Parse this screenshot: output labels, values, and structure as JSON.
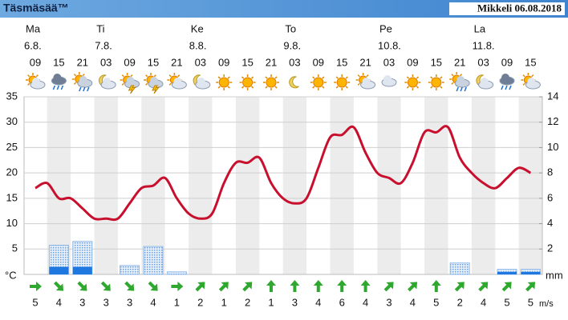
{
  "header": {
    "title": "Täsmäsää™",
    "location_date": "Mikkeli 06.08.2018"
  },
  "chart_data": {
    "type": "weather",
    "days": [
      "Ma",
      "Ti",
      "Ke",
      "To",
      "Pe",
      "La"
    ],
    "dates": [
      "6.8.",
      "7.8.",
      "8.8.",
      "9.8.",
      "10.8.",
      "11.8."
    ],
    "categories": [
      "09",
      null,
      "15",
      null,
      "21",
      null,
      "03",
      null,
      "09",
      null,
      "15",
      null,
      "21",
      null,
      "03",
      null,
      "09",
      null,
      "15",
      null,
      "21",
      null,
      "03",
      null,
      "09",
      null,
      "15",
      null,
      "21",
      null,
      "03",
      null,
      "09",
      null,
      "15",
      null,
      "21",
      null,
      "03",
      null,
      "09",
      null,
      "15"
    ],
    "symbols": [
      "partly",
      null,
      "rain",
      null,
      "partly-rain",
      null,
      "moon-cloud",
      null,
      "thunder",
      null,
      "thunder",
      null,
      "partly",
      null,
      "moon-cloud",
      null,
      "sun",
      null,
      "sun",
      null,
      "sun",
      null,
      "moon",
      null,
      "sun",
      null,
      "sun",
      null,
      "partly",
      null,
      "cloud",
      null,
      "sun",
      null,
      "sun",
      null,
      "partly-rain",
      null,
      "moon-cloud",
      null,
      "rain",
      null,
      "partly"
    ],
    "series": [
      {
        "color": "#c8102e",
        "values": [
          17,
          18,
          15,
          15,
          13,
          11,
          11,
          11,
          14,
          17,
          17.5,
          19,
          15,
          12,
          11,
          12,
          18,
          22,
          22,
          23,
          18,
          15,
          14,
          15,
          21,
          27,
          27.5,
          29,
          24,
          20,
          19,
          18,
          22,
          28,
          28,
          29,
          23,
          20,
          18,
          17,
          19,
          21,
          20
        ]
      },
      {
        "color": "#8fb8e8",
        "axis": "y2",
        "values": [
          0,
          null,
          2.3,
          null,
          2.6,
          null,
          0,
          null,
          0.7,
          null,
          2.2,
          null,
          0.2,
          null,
          0,
          null,
          0,
          null,
          0,
          null,
          0,
          null,
          0,
          null,
          0,
          null,
          0,
          null,
          0,
          null,
          0,
          null,
          0,
          null,
          0,
          null,
          0.9,
          null,
          0,
          null,
          0.4,
          null,
          0.4
        ]
      },
      {
        "color": "#1e78e0",
        "axis": "y2",
        "values": [
          0,
          null,
          0.6,
          null,
          0.6,
          null,
          0,
          null,
          0,
          null,
          0,
          null,
          0,
          null,
          0,
          null,
          0,
          null,
          0,
          null,
          0,
          null,
          0,
          null,
          0,
          null,
          0,
          null,
          0,
          null,
          0,
          null,
          0,
          null,
          0,
          null,
          0,
          null,
          0,
          null,
          0.2,
          null,
          0.2
        ]
      }
    ],
    "ylim": [
      0,
      35
    ],
    "yticks": [
      5,
      10,
      15,
      20,
      25,
      30,
      35
    ],
    "y_label": "°C",
    "y_color": "#d01010",
    "y2lim": [
      0,
      14
    ],
    "y2ticks": [
      2,
      4,
      6,
      8,
      10,
      12,
      14
    ],
    "y2_label": "mm",
    "y2_color": "#1060c0",
    "grid": true,
    "wind_speed": [
      5,
      null,
      4,
      null,
      3,
      null,
      3,
      null,
      3,
      null,
      4,
      null,
      1,
      null,
      2,
      null,
      1,
      null,
      2,
      null,
      1,
      null,
      3,
      null,
      4,
      null,
      6,
      null,
      4,
      null,
      3,
      null,
      4,
      null,
      5,
      null,
      2,
      null,
      4,
      null,
      5,
      null,
      5
    ],
    "wind_arrow_deg": [
      0,
      null,
      45,
      null,
      45,
      null,
      45,
      null,
      45,
      null,
      45,
      null,
      0,
      null,
      -45,
      null,
      -45,
      null,
      -45,
      null,
      -90,
      null,
      -90,
      null,
      -90,
      null,
      -90,
      null,
      -90,
      null,
      -45,
      null,
      -45,
      null,
      -90,
      null,
      -45,
      null,
      -45,
      null,
      -45,
      null,
      -45
    ],
    "wind_unit": "m/s",
    "wind_color": "#2ea82e"
  }
}
